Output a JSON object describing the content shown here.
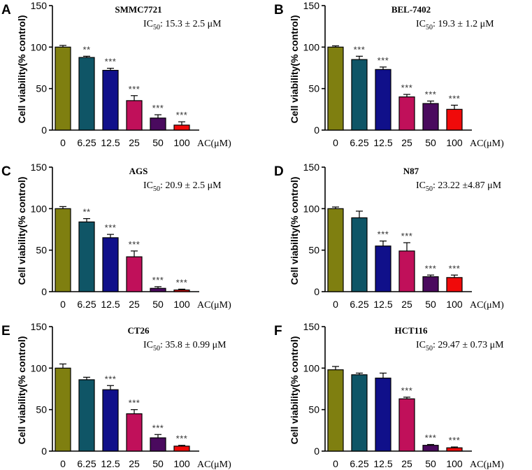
{
  "colors": [
    "#7f7f10",
    "#0f5566",
    "#10108a",
    "#c0105a",
    "#4a0a5e",
    "#f00a0a"
  ],
  "chart_data": [
    {
      "type": "bar",
      "panel": "A",
      "title": "SMMC7721",
      "ic50_label": "IC",
      "ic50_sub": "50",
      "ic50_value": ":  15.3 ± 2.5 μM",
      "categories": [
        "0",
        "6.25",
        "12.5",
        "25",
        "50",
        "100"
      ],
      "xunit": "AC(μM)",
      "ylabel": "Cell viability(% control)",
      "yticks": [
        "0",
        "50",
        "100",
        "150"
      ],
      "ylim": [
        0,
        150
      ],
      "values": [
        100,
        87.5,
        72,
        35.5,
        14.5,
        6
      ],
      "errors": [
        2,
        1.5,
        2.5,
        6,
        4,
        4
      ],
      "significance": [
        "",
        "**",
        "***",
        "***",
        "***",
        "***"
      ]
    },
    {
      "type": "bar",
      "panel": "B",
      "title": "BEL-7402",
      "ic50_label": "IC",
      "ic50_sub": "50",
      "ic50_value": ":  19.3 ± 1.2 μM",
      "categories": [
        "0",
        "6.25",
        "12.5",
        "25",
        "50",
        "100"
      ],
      "xunit": "AC(μM)",
      "ylabel": "Cell viability(% control)",
      "yticks": [
        "0",
        "50",
        "100",
        "150"
      ],
      "ylim": [
        0,
        150
      ],
      "values": [
        100,
        85,
        73,
        40,
        32,
        25
      ],
      "errors": [
        1.5,
        4,
        3,
        3,
        3,
        5
      ],
      "significance": [
        "",
        "***",
        "***",
        "***",
        "***",
        "***"
      ]
    },
    {
      "type": "bar",
      "panel": "C",
      "title": "AGS",
      "ic50_label": "IC",
      "ic50_sub": "50",
      "ic50_value": ":  20.9 ± 2.5 μM",
      "categories": [
        "0",
        "6.25",
        "12.5",
        "25",
        "50",
        "100"
      ],
      "xunit": "AC(μM)",
      "ylabel": "Cell viability(% control)",
      "yticks": [
        "0",
        "50",
        "100",
        "150"
      ],
      "ylim": [
        0,
        150
      ],
      "values": [
        100,
        84,
        65,
        42,
        4,
        2
      ],
      "errors": [
        2.5,
        4,
        4,
        7,
        2,
        1
      ],
      "significance": [
        "",
        "**",
        "***",
        "***",
        "***",
        "***"
      ]
    },
    {
      "type": "bar",
      "panel": "D",
      "title": "N87",
      "ic50_label": "IC",
      "ic50_sub": "50",
      "ic50_value": ":  23.22 ±4.87 μM",
      "categories": [
        "0",
        "6.25",
        "12.5",
        "25",
        "50",
        "100"
      ],
      "xunit": "AC(μM)",
      "ylabel": "Cell viability(% control)",
      "yticks": [
        "0",
        "50",
        "100",
        "150"
      ],
      "ylim": [
        0,
        150
      ],
      "values": [
        100,
        89,
        55,
        49,
        18,
        17
      ],
      "errors": [
        2,
        8,
        6,
        10,
        2,
        3
      ],
      "significance": [
        "",
        "",
        "***",
        "***",
        "***",
        "***"
      ]
    },
    {
      "type": "bar",
      "panel": "E",
      "title": "CT26",
      "ic50_label": "IC",
      "ic50_sub": "50",
      "ic50_value": ":  35.8 ± 0.99 μM",
      "categories": [
        "0",
        "6.25",
        "12.5",
        "25",
        "50",
        "100"
      ],
      "xunit": "AC(μM)",
      "ylabel": "Cell viability(% control)",
      "yticks": [
        "0",
        "50",
        "100",
        "150"
      ],
      "ylim": [
        0,
        150
      ],
      "values": [
        100,
        86,
        74,
        45,
        16,
        6
      ],
      "errors": [
        5,
        3,
        5,
        5,
        4,
        1
      ],
      "significance": [
        "",
        "",
        "***",
        "***",
        "***",
        "***"
      ]
    },
    {
      "type": "bar",
      "panel": "F",
      "title": "HCT116",
      "ic50_label": "IC",
      "ic50_sub": "50",
      "ic50_value": ":  29.47 ± 0.73 μM",
      "categories": [
        "0",
        "6.25",
        "12.5",
        "25",
        "50",
        "100"
      ],
      "xunit": "AC(μM)",
      "ylabel": "Cell viability(% control)",
      "yticks": [
        "0",
        "50",
        "100",
        "150"
      ],
      "ylim": [
        0,
        150
      ],
      "values": [
        98,
        92,
        88,
        63,
        7,
        4
      ],
      "errors": [
        4,
        2,
        6,
        2,
        1,
        1
      ],
      "significance": [
        "",
        "",
        "",
        "***",
        "***",
        "***"
      ]
    }
  ]
}
